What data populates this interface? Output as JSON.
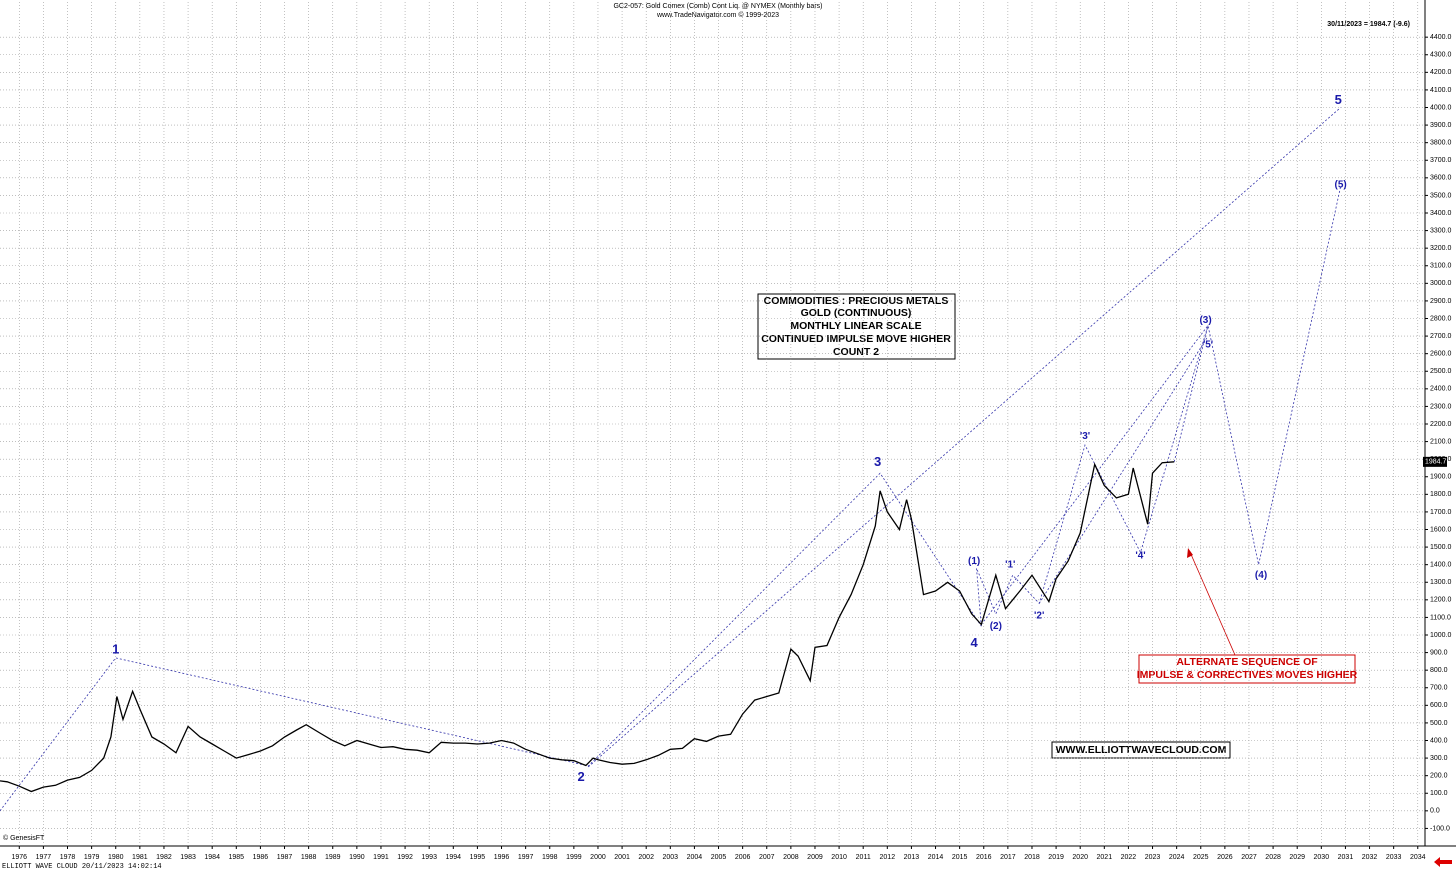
{
  "chart_data": {
    "type": "line",
    "title": "GC2-057:  Gold Comex (Comb) Cont Liq. @ NYMEX  (Monthly bars)",
    "subtitle": "www.TradeNavigator.com © 1999-2023",
    "last_info": "30/11/2023 = 1984.7 (-9.6)",
    "last_price": 1984.7,
    "copyright": "© GenesisFT",
    "footer": "ELLIOTT WAVE CLOUD   20/11/2023 14:02:14",
    "info_box": [
      "COMMODITIES : PRECIOUS METALS",
      "GOLD (CONTINUOUS)",
      "MONTHLY LINEAR SCALE",
      "CONTINUED IMPULSE MOVE HIGHER",
      "COUNT 2"
    ],
    "alt_note": [
      "ALTERNATE SEQUENCE OF",
      "IMPULSE & CORRECTIVES MOVES HIGHER"
    ],
    "website": "WWW.ELLIOTTWAVECLOUD.COM",
    "grid": true,
    "xlim": [
      1975.2,
      2034.3
    ],
    "ylim": [
      -200,
      4600
    ],
    "xticks": [
      1976,
      1977,
      1978,
      1979,
      1980,
      1981,
      1982,
      1983,
      1984,
      1985,
      1986,
      1987,
      1988,
      1989,
      1990,
      1991,
      1992,
      1993,
      1994,
      1995,
      1996,
      1997,
      1998,
      1999,
      2000,
      2001,
      2002,
      2003,
      2004,
      2005,
      2006,
      2007,
      2008,
      2009,
      2010,
      2011,
      2012,
      2013,
      2014,
      2015,
      2016,
      2017,
      2018,
      2019,
      2020,
      2021,
      2022,
      2023,
      2024,
      2025,
      2026,
      2027,
      2028,
      2029,
      2030,
      2031,
      2032,
      2033,
      2034
    ],
    "yticks": [
      {
        "value": -100,
        "label": "-100.0"
      },
      {
        "value": 0,
        "label": "0.0"
      },
      {
        "value": 100,
        "label": "100.0"
      },
      {
        "value": 200,
        "label": "200.0"
      },
      {
        "value": 300,
        "label": "300.0"
      },
      {
        "value": 400,
        "label": "400.0"
      },
      {
        "value": 500,
        "label": "500.0"
      },
      {
        "value": 600,
        "label": "600.0"
      },
      {
        "value": 700,
        "label": "700.0"
      },
      {
        "value": 800,
        "label": "800.0"
      },
      {
        "value": 900,
        "label": "900.0"
      },
      {
        "value": 1000,
        "label": "1000.0"
      },
      {
        "value": 1100,
        "label": "1100.0"
      },
      {
        "value": 1200,
        "label": "1200.0"
      },
      {
        "value": 1300,
        "label": "1300.0"
      },
      {
        "value": 1400,
        "label": "1400.0"
      },
      {
        "value": 1500,
        "label": "1500.0"
      },
      {
        "value": 1600,
        "label": "1600.0"
      },
      {
        "value": 1700,
        "label": "1700.0"
      },
      {
        "value": 1800,
        "label": "1800.0"
      },
      {
        "value": 1900,
        "label": "1900.0"
      },
      {
        "value": 2000,
        "label": "2000.0"
      },
      {
        "value": 2100,
        "label": "2100.0"
      },
      {
        "value": 2200,
        "label": "2200.0"
      },
      {
        "value": 2300,
        "label": "2300.0"
      },
      {
        "value": 2400,
        "label": "2400.0"
      },
      {
        "value": 2500,
        "label": "2500.0"
      },
      {
        "value": 2600,
        "label": "2600.0"
      },
      {
        "value": 2700,
        "label": "2700.0"
      },
      {
        "value": 2800,
        "label": "2800.0"
      },
      {
        "value": 2900,
        "label": "2900.0"
      },
      {
        "value": 3000,
        "label": "3000.0"
      },
      {
        "value": 3100,
        "label": "3100.0"
      },
      {
        "value": 3200,
        "label": "3200.0"
      },
      {
        "value": 3300,
        "label": "3300.0"
      },
      {
        "value": 3400,
        "label": "3400.0"
      },
      {
        "value": 3500,
        "label": "3500.0"
      },
      {
        "value": 3600,
        "label": "3600.0"
      },
      {
        "value": 3700,
        "label": "3700.0"
      },
      {
        "value": 3800,
        "label": "3800.0"
      },
      {
        "value": 3900,
        "label": "3900.0"
      },
      {
        "value": 4000,
        "label": "4000.0"
      },
      {
        "value": 4100,
        "label": "4100.0"
      },
      {
        "value": 4200,
        "label": "4200.0"
      },
      {
        "value": 4300,
        "label": "4300.0"
      },
      {
        "value": 4400,
        "label": "4400.0"
      }
    ],
    "series": [
      {
        "color": "#000000",
        "x": [
          1975.2,
          1975.5,
          1976,
          1976.5,
          1977,
          1977.5,
          1978,
          1978.5,
          1979,
          1979.5,
          1979.8,
          1980.05,
          1980.3,
          1980.7,
          1981,
          1981.5,
          1982,
          1982.5,
          1983,
          1983.5,
          1984,
          1984.5,
          1985,
          1985.5,
          1986,
          1986.5,
          1987,
          1987.5,
          1987.9,
          1988.5,
          1989,
          1989.5,
          1990,
          1990.5,
          1991,
          1991.5,
          1992,
          1992.5,
          1993,
          1993.5,
          1994,
          1994.5,
          1995,
          1995.5,
          1996,
          1996.5,
          1997,
          1997.5,
          1998,
          1998.5,
          1999,
          1999.5,
          1999.8,
          2000,
          2000.5,
          2001,
          2001.5,
          2002,
          2002.5,
          2003,
          2003.5,
          2004,
          2004.5,
          2005,
          2005.5,
          2006,
          2006.5,
          2007,
          2007.5,
          2008,
          2008.3,
          2008.8,
          2009,
          2009.5,
          2010,
          2010.5,
          2011,
          2011.5,
          2011.7,
          2012,
          2012.5,
          2012.8,
          2013,
          2013.5,
          2014,
          2014.5,
          2015,
          2015.5,
          2015.9,
          2016.5,
          2016.9,
          2017.5,
          2018,
          2018.7,
          2019,
          2019.5,
          2020,
          2020.6,
          2021,
          2021.5,
          2022,
          2022.2,
          2022.8,
          2023,
          2023.4,
          2023.9
        ],
        "values": [
          170,
          165,
          140,
          110,
          135,
          145,
          175,
          190,
          230,
          300,
          420,
          650,
          520,
          680,
          580,
          420,
          380,
          330,
          480,
          420,
          380,
          340,
          300,
          320,
          340,
          370,
          420,
          460,
          490,
          440,
          400,
          370,
          400,
          380,
          360,
          365,
          350,
          345,
          330,
          390,
          385,
          385,
          380,
          385,
          400,
          385,
          350,
          325,
          300,
          290,
          285,
          258,
          300,
          290,
          275,
          265,
          270,
          290,
          315,
          350,
          355,
          410,
          395,
          425,
          435,
          550,
          630,
          650,
          670,
          920,
          880,
          740,
          930,
          940,
          1100,
          1230,
          1400,
          1620,
          1820,
          1700,
          1600,
          1770,
          1660,
          1230,
          1250,
          1300,
          1250,
          1120,
          1060,
          1340,
          1150,
          1250,
          1340,
          1190,
          1320,
          1420,
          1580,
          1970,
          1850,
          1780,
          1800,
          1950,
          1630,
          1920,
          1980,
          1985
        ]
      }
    ],
    "wave_lines": [
      {
        "x": [
          1975.2,
          1980,
          1999.6,
          2011.7,
          2015.9
        ],
        "values": [
          0,
          870,
          255,
          1920,
          1050
        ]
      },
      {
        "x": [
          2015.9,
          2015.7,
          2016.5,
          2017.2,
          2018.3,
          2020.2,
          2022.5,
          2025.3,
          2027.4,
          2030.8
        ],
        "values": [
          1050,
          1380,
          1120,
          1340,
          1180,
          2080,
          1470,
          2760,
          1400,
          3550
        ]
      },
      {
        "x": [
          1999.6,
          2030.8
        ],
        "values": [
          250,
          4000
        ]
      },
      {
        "x": [
          2015.9,
          2025.3
        ],
        "values": [
          1060,
          2760
        ]
      },
      {
        "x": [
          2018.3,
          2025.3
        ],
        "values": [
          1180,
          2700
        ]
      },
      {
        "x": [
          2023.9,
          2025.3
        ],
        "values": [
          1985,
          2760
        ]
      }
    ],
    "wave_labels": [
      {
        "text": "1",
        "x": 1980,
        "y": 915,
        "big": true
      },
      {
        "text": "2",
        "x": 1999.3,
        "y": 190,
        "big": true
      },
      {
        "text": "3",
        "x": 2011.6,
        "y": 1980,
        "big": true
      },
      {
        "text": "4",
        "x": 2015.6,
        "y": 950,
        "big": true
      },
      {
        "text": "5",
        "x": 2030.7,
        "y": 4040,
        "big": true
      },
      {
        "text": "(1)",
        "x": 2015.6,
        "y": 1420
      },
      {
        "text": "(2)",
        "x": 2016.5,
        "y": 1050
      },
      {
        "text": "(3)",
        "x": 2025.2,
        "y": 2790
      },
      {
        "text": "(4)",
        "x": 2027.5,
        "y": 1340
      },
      {
        "text": "(5)",
        "x": 2030.8,
        "y": 3560
      },
      {
        "text": "'1'",
        "x": 2017.1,
        "y": 1400
      },
      {
        "text": "'2'",
        "x": 2018.3,
        "y": 1110
      },
      {
        "text": "'3'",
        "x": 2020.2,
        "y": 2130
      },
      {
        "text": "'4'",
        "x": 2022.5,
        "y": 1450
      },
      {
        "text": "'5'",
        "x": 2025.3,
        "y": 2650
      }
    ]
  }
}
